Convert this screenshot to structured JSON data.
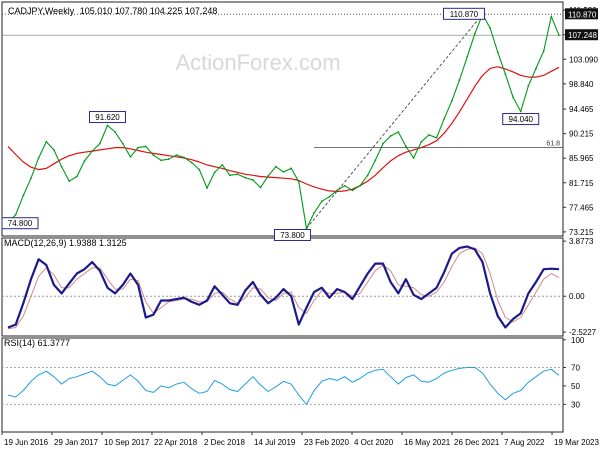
{
  "chart_data": {
    "type": "line",
    "watermark": "ActionForex.com",
    "x_tick_labels": [
      "19 Jun 2016",
      "29 Jan 2017",
      "10 Sep 2017",
      "22 Apr 2018",
      "2 Dec 2018",
      "14 Jul 2019",
      "23 Feb 2020",
      "4 Oct 2020",
      "16 May 2021",
      "26 Dec 2021",
      "7 Aug 2022",
      "19 Mar 2023"
    ],
    "price": {
      "title": "CADJPY,Weekly",
      "ohlc_text": "105.010 107.780 104.225 107.248",
      "ylim": [
        72.5,
        113.0
      ],
      "y_ticks": [
        "73.215",
        "77.465",
        "81.715",
        "85.965",
        "90.215",
        "94.465",
        "98.840",
        "103.090",
        "107.340",
        "111.590"
      ],
      "last_value_label": "107.248",
      "high_label": "110.870",
      "colors": {
        "price": "#009a19",
        "ma": "#e01010",
        "trendline": "#333333",
        "axis": "#333333"
      },
      "series": [
        {
          "name": "price",
          "values": [
            74.8,
            76.2,
            79.5,
            82.5,
            86.0,
            88.8,
            87.4,
            84.5,
            82.0,
            82.8,
            85.5,
            87.2,
            88.5,
            91.62,
            90.5,
            88.5,
            86.2,
            87.8,
            88.0,
            86.5,
            85.6,
            85.8,
            86.5,
            86.1,
            85.2,
            84.0,
            80.8,
            83.5,
            84.8,
            83.0,
            83.2,
            82.6,
            82.2,
            80.9,
            82.9,
            84.5,
            83.6,
            84.2,
            81.9,
            73.8,
            76.5,
            78.5,
            79.3,
            80.4,
            81.2,
            80.4,
            81.2,
            83.0,
            85.6,
            88.5,
            89.8,
            90.5,
            88.0,
            86.0,
            88.8,
            90.0,
            89.5,
            92.8,
            95.9,
            99.5,
            103.5,
            107.5,
            110.87,
            108.5,
            104.3,
            100.5,
            96.5,
            94.04,
            98.5,
            101.5,
            104.5,
            110.5,
            107.248
          ]
        },
        {
          "name": "ma",
          "values": [
            88.0,
            86.6,
            85.3,
            84.4,
            84.0,
            84.2,
            85.0,
            85.8,
            86.4,
            86.8,
            87.0,
            87.2,
            87.4,
            87.6,
            87.8,
            87.8,
            87.6,
            87.3,
            87.0,
            86.8,
            86.6,
            86.4,
            86.2,
            86.0,
            85.7,
            85.3,
            84.8,
            84.5,
            84.2,
            83.8,
            83.5,
            83.2,
            83.0,
            82.8,
            82.7,
            82.6,
            82.5,
            82.4,
            82.1,
            81.5,
            81.0,
            80.6,
            80.3,
            80.2,
            80.3,
            80.6,
            81.2,
            82.0,
            83.0,
            84.3,
            85.5,
            86.4,
            87.0,
            87.4,
            87.8,
            88.3,
            89.0,
            90.3,
            92.0,
            94.0,
            96.2,
            98.4,
            100.3,
            101.5,
            101.8,
            101.4,
            100.9,
            100.3,
            100.0,
            100.0,
            100.3,
            101.0,
            101.7
          ]
        }
      ],
      "annotations": [
        {
          "label": "74.800",
          "x_index": 0,
          "value": 74.8
        },
        {
          "label": "91.620",
          "x_index": 13,
          "value": 91.62
        },
        {
          "label": "73.800",
          "x_index": 39,
          "value": 73.8
        },
        {
          "label": "110.870",
          "x_index": 62,
          "value": 110.87
        },
        {
          "label": "94.040",
          "x_index": 67,
          "value": 94.04
        }
      ],
      "trendline": {
        "from": {
          "x_index": 39,
          "value": 73.8
        },
        "to": {
          "x_index": 62,
          "value": 110.87
        }
      },
      "fib_line": {
        "label": "61.8",
        "value": 87.8,
        "x_start_index": 40
      }
    },
    "macd": {
      "title": "MACD(12,26,9) 1.9388 1.3125",
      "ylim": [
        -2.8,
        4.1
      ],
      "y_ticks": [
        "3.8773",
        "0.00",
        "-2.5227"
      ],
      "zero_line": 0,
      "colors": {
        "macd": "#1a1a8c",
        "signal": "#d18a8a",
        "zero": "#999999"
      },
      "series": [
        {
          "name": "macd",
          "values": [
            -2.2,
            -2.0,
            -0.5,
            1.2,
            2.6,
            2.2,
            0.8,
            0.2,
            0.9,
            1.6,
            1.9,
            2.4,
            1.8,
            0.6,
            0.2,
            0.8,
            1.6,
            0.8,
            -1.5,
            -1.3,
            -0.3,
            -0.3,
            -0.2,
            -0.1,
            -0.4,
            -0.6,
            -0.3,
            0.7,
            0.1,
            -0.5,
            -0.6,
            0.4,
            1.0,
            0.1,
            -0.5,
            -0.1,
            0.5,
            0.0,
            -2.0,
            -0.8,
            0.3,
            0.6,
            -0.1,
            0.5,
            0.3,
            -0.2,
            0.7,
            1.6,
            2.3,
            2.3,
            1.0,
            0.2,
            1.2,
            0.1,
            -0.2,
            0.2,
            0.6,
            1.7,
            3.0,
            3.4,
            3.5,
            3.3,
            2.4,
            0.2,
            -1.4,
            -2.2,
            -1.6,
            -1.2,
            0.2,
            1.0,
            1.9,
            1.94,
            1.9
          ]
        },
        {
          "name": "signal",
          "values": [
            -2.3,
            -2.2,
            -1.4,
            0.0,
            1.4,
            2.0,
            1.5,
            0.6,
            0.6,
            1.2,
            1.6,
            2.0,
            2.0,
            1.2,
            0.5,
            0.5,
            1.2,
            1.1,
            -0.4,
            -1.2,
            -0.8,
            -0.4,
            -0.3,
            -0.2,
            -0.2,
            -0.4,
            -0.4,
            0.2,
            0.3,
            -0.2,
            -0.5,
            -0.1,
            0.6,
            0.5,
            -0.1,
            -0.3,
            0.2,
            0.3,
            -0.8,
            -1.2,
            -0.3,
            0.4,
            0.2,
            0.2,
            0.3,
            0.0,
            0.2,
            1.0,
            1.8,
            2.2,
            1.8,
            0.8,
            0.7,
            0.6,
            0.1,
            0.0,
            0.3,
            1.0,
            2.1,
            3.0,
            3.3,
            3.4,
            3.0,
            1.6,
            -0.3,
            -1.5,
            -1.8,
            -1.5,
            -0.6,
            0.3,
            1.2,
            1.6,
            1.31
          ]
        }
      ]
    },
    "rsi": {
      "title": "RSI(14) 61.3777",
      "ylim": [
        0,
        102
      ],
      "y_ticks": [
        "100",
        "70",
        "50",
        "30"
      ],
      "levels": [
        70,
        30
      ],
      "colors": {
        "rsi": "#1f9fe0",
        "level": "#aaaaaa"
      },
      "series": [
        {
          "name": "rsi",
          "values": [
            40,
            38,
            45,
            55,
            62,
            66,
            60,
            52,
            58,
            60,
            63,
            66,
            60,
            52,
            50,
            56,
            62,
            55,
            45,
            43,
            50,
            48,
            52,
            54,
            47,
            42,
            44,
            56,
            52,
            46,
            44,
            52,
            60,
            51,
            44,
            49,
            55,
            52,
            40,
            30,
            45,
            55,
            58,
            56,
            60,
            54,
            58,
            64,
            67,
            68,
            60,
            52,
            59,
            62,
            55,
            54,
            58,
            64,
            67,
            69,
            70,
            70,
            64,
            52,
            42,
            35,
            42,
            45,
            54,
            60,
            66,
            68,
            61.4
          ]
        }
      ]
    }
  }
}
